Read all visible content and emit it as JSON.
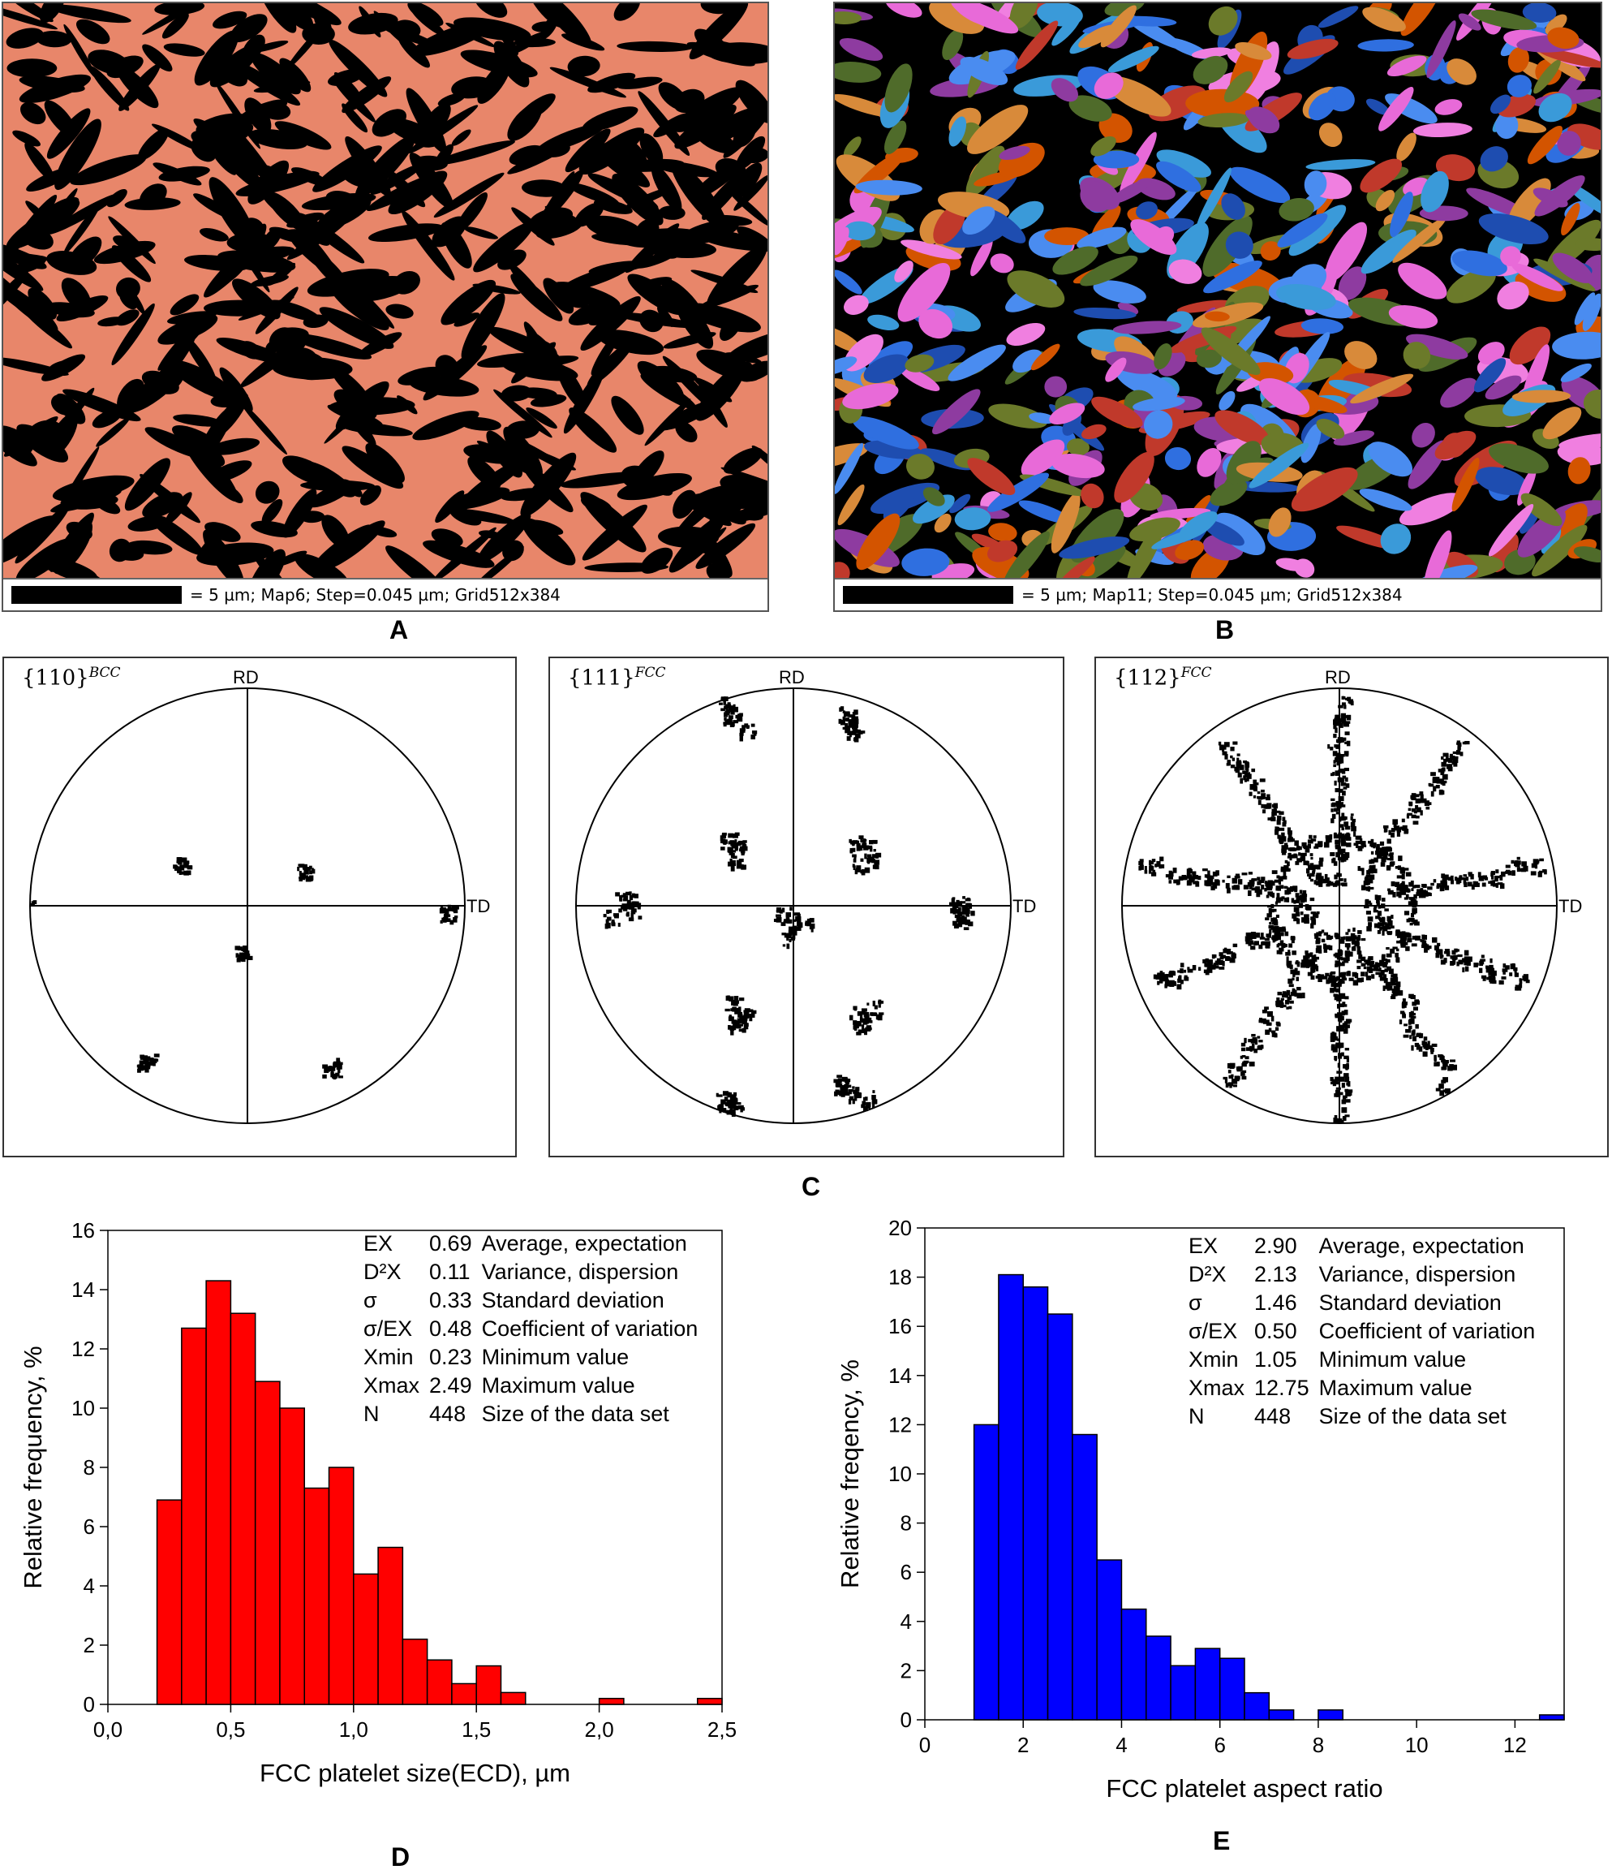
{
  "panels": {
    "A": {
      "letter": "A",
      "scalebar": "= 5 µm; Map6; Step=0.045 µm; Grid512x384",
      "colors": {
        "matrix": "#E8866A",
        "phase": "#000000"
      }
    },
    "B": {
      "letter": "B",
      "scalebar": "= 5 µm; Map11; Step=0.045 µm; Grid512x384",
      "colors": [
        "#2F6FE0",
        "#4A8CF0",
        "#E86AD8",
        "#F07FE0",
        "#C0392B",
        "#D35400",
        "#6B7A2A",
        "#4F6B2A",
        "#1E4DB0",
        "#D88A3A",
        "#8E3BA0",
        "#3A9AD9"
      ]
    },
    "C": {
      "letter": "C",
      "pole_figures": [
        {
          "family": "{110}",
          "phase": "BCC",
          "rd": "RD",
          "td": "TD"
        },
        {
          "family": "{111}",
          "phase": "FCC",
          "rd": "RD",
          "td": "TD"
        },
        {
          "family": "{112}",
          "phase": "FCC",
          "rd": "RD",
          "td": "TD"
        }
      ]
    },
    "D": {
      "letter": "D",
      "stats": [
        {
          "sym": "EX",
          "val": "0.69",
          "desc": "Average, expectation"
        },
        {
          "sym": "D²X",
          "val": "0.11",
          "desc": "Variance, dispersion"
        },
        {
          "sym": "σ",
          "val": "0.33",
          "desc": "Standard deviation"
        },
        {
          "sym": "σ/EX",
          "val": "0.48",
          "desc": "Coefficient of variation"
        },
        {
          "sym": "Xmin",
          "val": "0.23",
          "desc": "Minimum value"
        },
        {
          "sym": "Xmax",
          "val": "2.49",
          "desc": "Maximum value"
        },
        {
          "sym": "N",
          "val": "448",
          "desc": "Size of the data set"
        }
      ]
    },
    "E": {
      "letter": "E",
      "stats": [
        {
          "sym": "EX",
          "val": "2.90",
          "desc": "Average, expectation"
        },
        {
          "sym": "D²X",
          "val": "2.13",
          "desc": "Variance, dispersion"
        },
        {
          "sym": "σ",
          "val": "1.46",
          "desc": "Standard deviation"
        },
        {
          "sym": "σ/EX",
          "val": "0.50",
          "desc": "Coefficient of variation"
        },
        {
          "sym": "Xmin",
          "val": "1.05",
          "desc": "Minimum value"
        },
        {
          "sym": "Xmax",
          "val": "12.75",
          "desc": "Maximum value"
        },
        {
          "sym": "N",
          "val": "448",
          "desc": "Size of the data set"
        }
      ]
    }
  },
  "chart_data": [
    {
      "type": "bar",
      "color": "#FF0000",
      "xlabel": "FCC platelet size(ECD), µm",
      "ylabel": "Relative frequency, %",
      "xlim": [
        0,
        2.5
      ],
      "ylim": [
        0,
        16
      ],
      "xticks": [
        "0,0",
        "0,5",
        "1,0",
        "1,5",
        "2,0",
        "2,5"
      ],
      "yticks": [
        "0",
        "2",
        "4",
        "6",
        "8",
        "10",
        "12",
        "14",
        "16"
      ],
      "bin_width": 0.1,
      "x": [
        0.25,
        0.35,
        0.45,
        0.55,
        0.65,
        0.75,
        0.85,
        0.95,
        1.05,
        1.15,
        1.25,
        1.35,
        1.45,
        1.55,
        1.65,
        2.05,
        2.45
      ],
      "values": [
        6.9,
        12.7,
        14.3,
        13.2,
        10.9,
        10.0,
        7.3,
        8.0,
        4.4,
        5.3,
        2.2,
        1.5,
        0.7,
        1.3,
        0.4,
        0.2,
        0.2
      ]
    },
    {
      "type": "bar",
      "color": "#0000FF",
      "xlabel": "FCC platelet aspect ratio",
      "ylabel": "Relative freqency, %",
      "xlim": [
        0,
        13
      ],
      "ylim": [
        0,
        20
      ],
      "xticks": [
        "0",
        "2",
        "4",
        "6",
        "8",
        "10",
        "12"
      ],
      "yticks": [
        "0",
        "2",
        "4",
        "6",
        "8",
        "10",
        "12",
        "14",
        "16",
        "18",
        "20"
      ],
      "bin_width": 0.5,
      "x": [
        1.25,
        1.75,
        2.25,
        2.75,
        3.25,
        3.75,
        4.25,
        4.75,
        5.25,
        5.75,
        6.25,
        6.75,
        7.25,
        8.25,
        12.75
      ],
      "values": [
        12.0,
        18.1,
        17.6,
        16.5,
        11.6,
        6.5,
        4.5,
        3.4,
        2.2,
        2.9,
        2.5,
        1.1,
        0.4,
        0.4,
        0.2
      ]
    }
  ]
}
